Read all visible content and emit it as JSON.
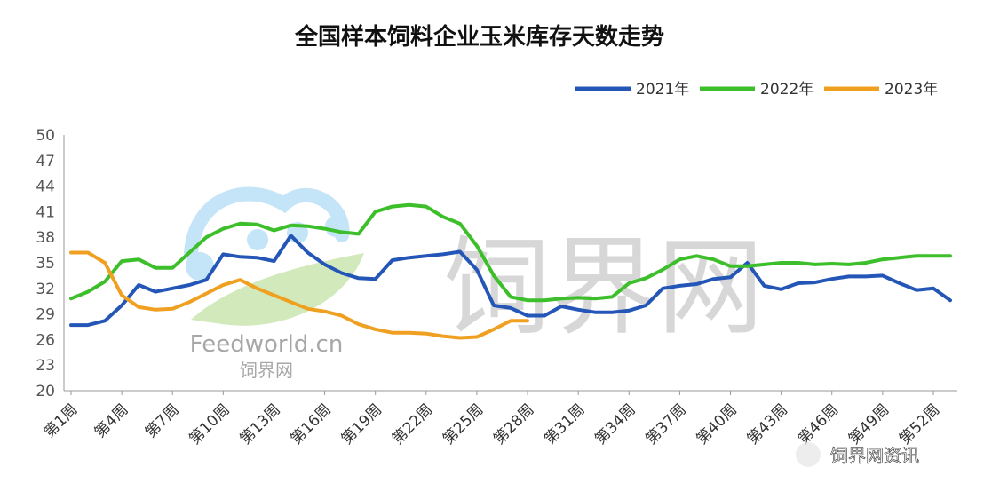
{
  "chart_data": {
    "type": "line",
    "title": "全国样本饲料企业玉米库存天数走势",
    "xlabel": "",
    "ylabel": "",
    "ylim": [
      20,
      50
    ],
    "yticks": [
      20,
      23,
      26,
      29,
      32,
      35,
      38,
      41,
      44,
      47,
      50
    ],
    "x_ticks_shown": [
      "第1周",
      "第4周",
      "第7周",
      "第10周",
      "第13周",
      "第16周",
      "第19周",
      "第22周",
      "第25周",
      "第28周",
      "第31周",
      "第34周",
      "第37周",
      "第40周",
      "第43周",
      "第46周",
      "第49周",
      "第52周"
    ],
    "xlim": [
      1,
      53
    ],
    "grid": false,
    "legend_position": "top-right",
    "series": [
      {
        "name": "2021年",
        "color": "#2456b8",
        "x": [
          1,
          2,
          3,
          4,
          5,
          6,
          7,
          8,
          9,
          10,
          11,
          12,
          13,
          14,
          15,
          16,
          17,
          18,
          19,
          20,
          21,
          22,
          23,
          24,
          25,
          26,
          27,
          28,
          29,
          30,
          31,
          32,
          33,
          34,
          35,
          36,
          37,
          38,
          39,
          40,
          41,
          42,
          43,
          44,
          45,
          46,
          47,
          48,
          49,
          50,
          51,
          52,
          53
        ],
        "y": [
          27.7,
          27.7,
          28.2,
          30.0,
          32.4,
          31.6,
          32.0,
          32.4,
          33.0,
          36.0,
          35.7,
          35.6,
          35.2,
          38.2,
          36.2,
          34.8,
          33.8,
          33.2,
          33.1,
          35.3,
          35.6,
          35.8,
          36.0,
          36.3,
          34.2,
          30.0,
          29.7,
          28.8,
          28.8,
          29.9,
          29.5,
          29.2,
          29.2,
          29.4,
          30.0,
          32.0,
          32.3,
          32.5,
          33.1,
          33.3,
          35.0,
          32.3,
          31.9,
          32.6,
          32.7,
          33.1,
          33.4,
          33.4,
          33.5,
          32.6,
          31.8,
          32.0,
          30.6
        ]
      },
      {
        "name": "2022年",
        "color": "#3cbf2a",
        "x": [
          1,
          2,
          3,
          4,
          5,
          6,
          7,
          8,
          9,
          10,
          11,
          12,
          13,
          14,
          15,
          16,
          17,
          18,
          19,
          20,
          21,
          22,
          23,
          24,
          25,
          26,
          27,
          28,
          29,
          30,
          31,
          32,
          33,
          34,
          35,
          36,
          37,
          38,
          39,
          40,
          41,
          42,
          43,
          44,
          45,
          46,
          47,
          48,
          49,
          50,
          51,
          52,
          53
        ],
        "y": [
          30.8,
          31.6,
          32.8,
          35.2,
          35.4,
          34.4,
          34.4,
          36.2,
          38.0,
          39.0,
          39.6,
          39.5,
          38.8,
          39.4,
          39.3,
          39.0,
          38.6,
          38.4,
          41.0,
          41.6,
          41.8,
          41.6,
          40.4,
          39.6,
          37.0,
          33.5,
          31.0,
          30.6,
          30.6,
          30.8,
          30.9,
          30.8,
          31.0,
          32.6,
          33.2,
          34.2,
          35.4,
          35.8,
          35.4,
          34.6,
          34.6,
          34.8,
          35.0,
          35.0,
          34.8,
          34.9,
          34.8,
          35.0,
          35.4,
          35.6,
          35.8,
          35.8,
          35.8
        ]
      },
      {
        "name": "2023年",
        "color": "#f0a020",
        "x": [
          1,
          2,
          3,
          4,
          5,
          6,
          7,
          8,
          9,
          10,
          11,
          12,
          13,
          14,
          15,
          16,
          17,
          18,
          19,
          20,
          21,
          22,
          23,
          24,
          25,
          26,
          27,
          28
        ],
        "y": [
          36.2,
          36.2,
          35.0,
          31.2,
          29.8,
          29.5,
          29.6,
          30.4,
          31.4,
          32.4,
          33.0,
          32.0,
          31.2,
          30.4,
          29.6,
          29.3,
          28.8,
          27.8,
          27.2,
          26.8,
          26.8,
          26.7,
          26.4,
          26.2,
          26.3,
          27.2,
          28.2,
          28.2
        ]
      }
    ]
  },
  "watermarks": {
    "big": "饲界网",
    "site": "Feedworld.cn",
    "site_cn": "饲界网",
    "wechat": "饲界网资讯"
  }
}
